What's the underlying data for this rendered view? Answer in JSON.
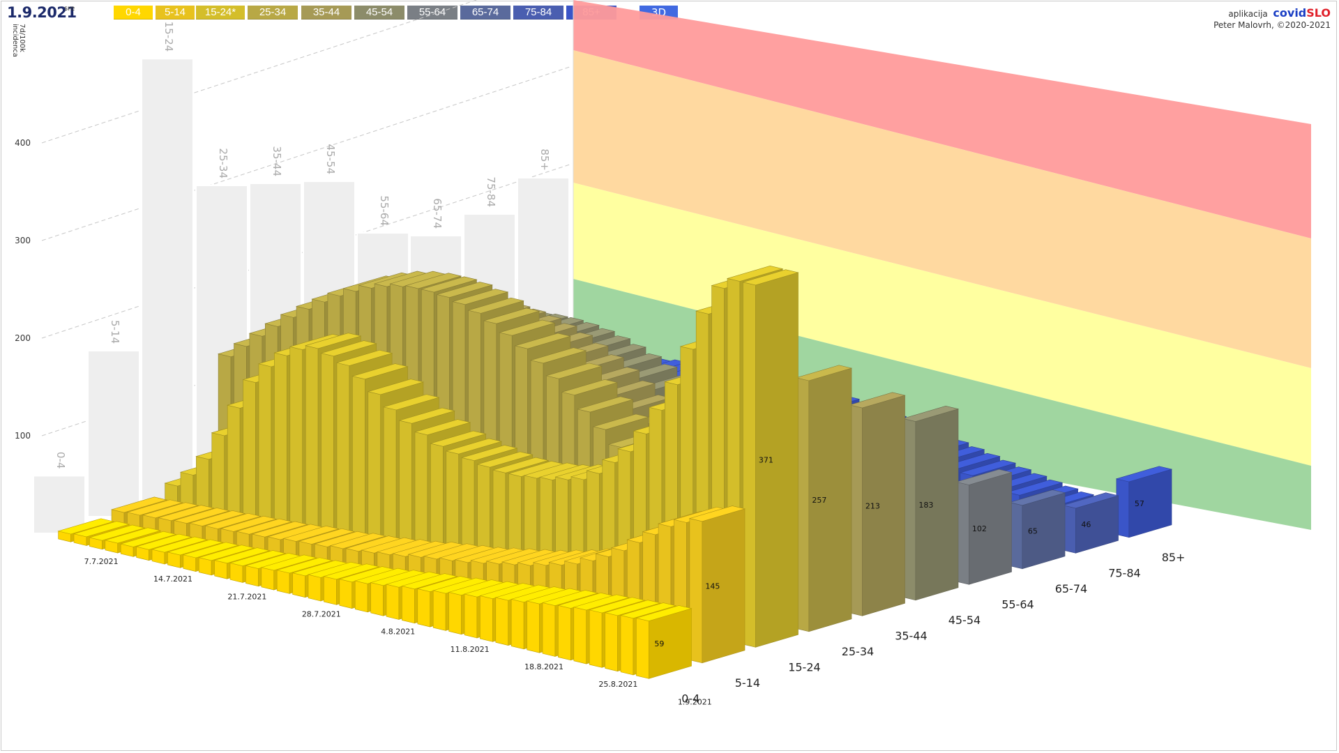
{
  "header": {
    "date": "1.9.2021",
    "dow": "sre",
    "btn3d": "3D",
    "app_prefix": "aplikacija",
    "app_name_a": "covid",
    "app_name_b": "SLO",
    "author": "Peter Malovrh, ©2020-2021"
  },
  "y_axis": {
    "title_line1": "7d/100k",
    "title_line2": "incidenca"
  },
  "colors": {
    "0-4": "#ffd700",
    "5-14": "#e8c21d",
    "15-24": "#d4be2a",
    "25-34": "#b8a845",
    "35-44": "#a69a56",
    "45-54": "#8c8c6a",
    "55-64": "#7a7f85",
    "65-74": "#5a6a9c",
    "75-84": "#4a5eb0",
    "85+": "#3a55c8",
    "danger_red": "#ff9b9b",
    "orange": "#ffd79b",
    "yellow": "#ffff9b",
    "green": "#9bd49b"
  },
  "legend": [
    {
      "label": "0-4",
      "key": "0-4"
    },
    {
      "label": "5-14",
      "key": "5-14"
    },
    {
      "label": "15-24*",
      "key": "15-24"
    },
    {
      "label": "25-34",
      "key": "25-34"
    },
    {
      "label": "35-44",
      "key": "35-44"
    },
    {
      "label": "45-54",
      "key": "45-54"
    },
    {
      "label": "55-64",
      "key": "55-64"
    },
    {
      "label": "65-74",
      "key": "65-74"
    },
    {
      "label": "75-84",
      "key": "75-84"
    },
    {
      "label": "85+",
      "key": "85+"
    }
  ],
  "chart_data": {
    "type": "bar",
    "title": "1.9.2021",
    "ylabel": "7d/100k incidenca",
    "yticks": [
      100,
      200,
      300,
      400
    ],
    "date_labels": [
      "7.7.2021",
      "14.7.2021",
      "21.7.2021",
      "28.7.2021",
      "4.8.2021",
      "11.8.2021",
      "18.8.2021",
      "25.8.2021",
      "1.9.2021"
    ],
    "age_groups": [
      "0-4",
      "5-14",
      "15-24",
      "25-34",
      "35-44",
      "45-54",
      "55-64",
      "65-74",
      "75-84",
      "85+"
    ],
    "latest_values": [
      59,
      145,
      371,
      257,
      213,
      183,
      102,
      65,
      46,
      57
    ],
    "back_wall_values": [
      59,
      170,
      452,
      305,
      290,
      275,
      205,
      185,
      190,
      210
    ],
    "series": [
      {
        "name": "0-4",
        "values": [
          8,
          9,
          9,
          10,
          10,
          11,
          12,
          13,
          14,
          15,
          16,
          17,
          18,
          20,
          21,
          22,
          24,
          26,
          27,
          29,
          31,
          33,
          35,
          36,
          38,
          40,
          42,
          44,
          46,
          48,
          50,
          52,
          53,
          55,
          56,
          57,
          58,
          59
        ]
      },
      {
        "name": "5-14",
        "values": [
          14,
          15,
          16,
          17,
          18,
          19,
          20,
          21,
          22,
          23,
          24,
          26,
          27,
          28,
          30,
          31,
          33,
          35,
          37,
          40,
          42,
          44,
          46,
          49,
          52,
          55,
          58,
          62,
          66,
          71,
          78,
          86,
          96,
          108,
          120,
          132,
          140,
          145
        ]
      },
      {
        "name": "15-24",
        "values": [
          25,
          40,
          60,
          88,
          120,
          150,
          170,
          185,
          195,
          200,
          196,
          190,
          180,
          168,
          156,
          146,
          138,
          130,
          126,
          123,
          120,
          118,
          118,
          120,
          122,
          126,
          130,
          140,
          155,
          170,
          192,
          220,
          250,
          290,
          330,
          360,
          371,
          371
        ]
      }
    ]
  }
}
